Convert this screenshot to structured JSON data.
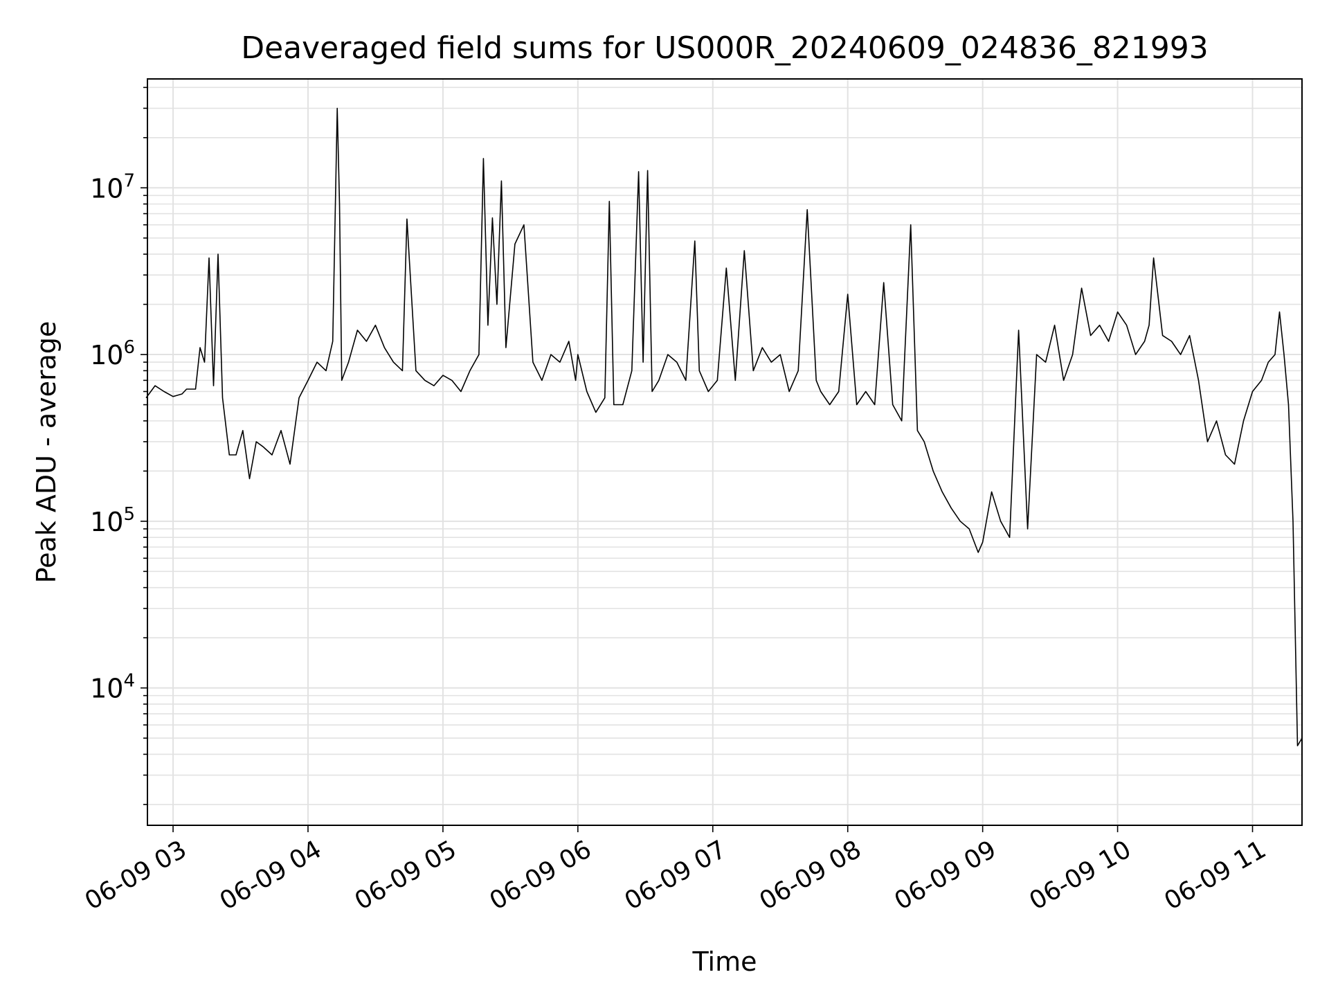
{
  "chart_data": {
    "type": "line",
    "title": "Deaveraged field sums for US000R_20240609_024836_821993",
    "xlabel": "Time",
    "ylabel": "Peak ADU - average",
    "yscale": "log",
    "ylim": [
      1500,
      45000000
    ],
    "xlim": [
      "2024-06-09T02:48:36",
      "2024-06-09T11:22:00"
    ],
    "x_ticks": [
      {
        "at": "2024-06-09T03:00",
        "label": "06-09 03"
      },
      {
        "at": "2024-06-09T04:00",
        "label": "06-09 04"
      },
      {
        "at": "2024-06-09T05:00",
        "label": "06-09 05"
      },
      {
        "at": "2024-06-09T06:00",
        "label": "06-09 06"
      },
      {
        "at": "2024-06-09T07:00",
        "label": "06-09 07"
      },
      {
        "at": "2024-06-09T08:00",
        "label": "06-09 08"
      },
      {
        "at": "2024-06-09T09:00",
        "label": "06-09 09"
      },
      {
        "at": "2024-06-09T10:00",
        "label": "06-09 10"
      },
      {
        "at": "2024-06-09T11:00",
        "label": "06-09 11"
      }
    ],
    "y_ticks": [
      {
        "value": 10000,
        "base": "10",
        "exp": "4"
      },
      {
        "value": 100000,
        "base": "10",
        "exp": "5"
      },
      {
        "value": 1000000,
        "base": "10",
        "exp": "6"
      },
      {
        "value": 10000000,
        "base": "10",
        "exp": "7"
      }
    ],
    "grid": true,
    "line_color": "#000000",
    "series": [
      {
        "x": [
          "2024-06-09T02:48",
          "2024-06-09T02:52",
          "2024-06-09T02:56",
          "2024-06-09T03:00",
          "2024-06-09T03:04",
          "2024-06-09T03:06",
          "2024-06-09T03:08",
          "2024-06-09T03:10",
          "2024-06-09T03:12",
          "2024-06-09T03:14",
          "2024-06-09T03:16",
          "2024-06-09T03:18",
          "2024-06-09T03:20",
          "2024-06-09T03:22",
          "2024-06-09T03:25",
          "2024-06-09T03:28",
          "2024-06-09T03:31",
          "2024-06-09T03:34",
          "2024-06-09T03:37",
          "2024-06-09T03:40",
          "2024-06-09T03:44",
          "2024-06-09T03:48",
          "2024-06-09T03:52",
          "2024-06-09T03:56",
          "2024-06-09T04:00",
          "2024-06-09T04:04",
          "2024-06-09T04:08",
          "2024-06-09T04:11",
          "2024-06-09T04:13",
          "2024-06-09T04:14",
          "2024-06-09T04:15",
          "2024-06-09T04:18",
          "2024-06-09T04:22",
          "2024-06-09T04:26",
          "2024-06-09T04:30",
          "2024-06-09T04:34",
          "2024-06-09T04:38",
          "2024-06-09T04:42",
          "2024-06-09T04:44",
          "2024-06-09T04:48",
          "2024-06-09T04:52",
          "2024-06-09T04:56",
          "2024-06-09T05:00",
          "2024-06-09T05:04",
          "2024-06-09T05:08",
          "2024-06-09T05:12",
          "2024-06-09T05:16",
          "2024-06-09T05:18",
          "2024-06-09T05:20",
          "2024-06-09T05:22",
          "2024-06-09T05:24",
          "2024-06-09T05:26",
          "2024-06-09T05:28",
          "2024-06-09T05:32",
          "2024-06-09T05:36",
          "2024-06-09T05:40",
          "2024-06-09T05:44",
          "2024-06-09T05:48",
          "2024-06-09T05:52",
          "2024-06-09T05:56",
          "2024-06-09T05:59",
          "2024-06-09T06:00",
          "2024-06-09T06:04",
          "2024-06-09T06:08",
          "2024-06-09T06:12",
          "2024-06-09T06:14",
          "2024-06-09T06:16",
          "2024-06-09T06:20",
          "2024-06-09T06:24",
          "2024-06-09T06:27",
          "2024-06-09T06:29",
          "2024-06-09T06:31",
          "2024-06-09T06:33",
          "2024-06-09T06:36",
          "2024-06-09T06:40",
          "2024-06-09T06:44",
          "2024-06-09T06:48",
          "2024-06-09T06:52",
          "2024-06-09T06:54",
          "2024-06-09T06:58",
          "2024-06-09T07:02",
          "2024-06-09T07:06",
          "2024-06-09T07:10",
          "2024-06-09T07:14",
          "2024-06-09T07:18",
          "2024-06-09T07:22",
          "2024-06-09T07:26",
          "2024-06-09T07:30",
          "2024-06-09T07:34",
          "2024-06-09T07:38",
          "2024-06-09T07:42",
          "2024-06-09T07:46",
          "2024-06-09T07:48",
          "2024-06-09T07:52",
          "2024-06-09T07:56",
          "2024-06-09T08:00",
          "2024-06-09T08:04",
          "2024-06-09T08:08",
          "2024-06-09T08:12",
          "2024-06-09T08:16",
          "2024-06-09T08:20",
          "2024-06-09T08:24",
          "2024-06-09T08:28",
          "2024-06-09T08:31",
          "2024-06-09T08:34",
          "2024-06-09T08:38",
          "2024-06-09T08:42",
          "2024-06-09T08:46",
          "2024-06-09T08:50",
          "2024-06-09T08:54",
          "2024-06-09T08:58",
          "2024-06-09T09:00",
          "2024-06-09T09:04",
          "2024-06-09T09:08",
          "2024-06-09T09:12",
          "2024-06-09T09:16",
          "2024-06-09T09:20",
          "2024-06-09T09:24",
          "2024-06-09T09:28",
          "2024-06-09T09:32",
          "2024-06-09T09:36",
          "2024-06-09T09:40",
          "2024-06-09T09:44",
          "2024-06-09T09:48",
          "2024-06-09T09:52",
          "2024-06-09T09:56",
          "2024-06-09T10:00",
          "2024-06-09T10:04",
          "2024-06-09T10:08",
          "2024-06-09T10:12",
          "2024-06-09T10:14",
          "2024-06-09T10:16",
          "2024-06-09T10:20",
          "2024-06-09T10:24",
          "2024-06-09T10:28",
          "2024-06-09T10:32",
          "2024-06-09T10:36",
          "2024-06-09T10:40",
          "2024-06-09T10:44",
          "2024-06-09T10:48",
          "2024-06-09T10:52",
          "2024-06-09T10:56",
          "2024-06-09T11:00",
          "2024-06-09T11:04",
          "2024-06-09T11:07",
          "2024-06-09T11:10",
          "2024-06-09T11:12",
          "2024-06-09T11:14",
          "2024-06-09T11:16",
          "2024-06-09T11:18",
          "2024-06-09T11:20",
          "2024-06-09T11:22"
        ],
        "y": [
          550000,
          650000,
          600000,
          560000,
          580000,
          620000,
          620000,
          620000,
          1100000,
          900000,
          3800000,
          650000,
          4000000,
          550000,
          250000,
          250000,
          350000,
          180000,
          300000,
          280000,
          250000,
          350000,
          220000,
          550000,
          700000,
          900000,
          800000,
          1200000,
          30000000,
          8000000,
          700000,
          900000,
          1400000,
          1200000,
          1500000,
          1100000,
          900000,
          800000,
          6500000,
          800000,
          700000,
          650000,
          750000,
          700000,
          600000,
          800000,
          1000000,
          15000000,
          1500000,
          6600000,
          2000000,
          11000000,
          1100000,
          4600000,
          6000000,
          900000,
          700000,
          1000000,
          900000,
          1200000,
          700000,
          1000000,
          600000,
          450000,
          550000,
          8300000,
          500000,
          500000,
          800000,
          12500000,
          900000,
          12700000,
          600000,
          700000,
          1000000,
          900000,
          700000,
          4800000,
          800000,
          600000,
          700000,
          3300000,
          700000,
          4200000,
          800000,
          1100000,
          900000,
          1000000,
          600000,
          800000,
          7400000,
          700000,
          600000,
          500000,
          600000,
          2300000,
          500000,
          600000,
          500000,
          2700000,
          500000,
          400000,
          6000000,
          350000,
          300000,
          200000,
          150000,
          120000,
          100000,
          90000,
          65000,
          75000,
          150000,
          100000,
          80000,
          1400000,
          90000,
          1000000,
          900000,
          1500000,
          700000,
          1000000,
          2500000,
          1300000,
          1500000,
          1200000,
          1800000,
          1500000,
          1000000,
          1200000,
          1500000,
          3800000,
          1300000,
          1200000,
          1000000,
          1300000,
          700000,
          300000,
          400000,
          250000,
          220000,
          400000,
          600000,
          700000,
          900000,
          1000000,
          1800000,
          1000000,
          500000,
          100000,
          4500,
          5000
        ]
      }
    ]
  }
}
